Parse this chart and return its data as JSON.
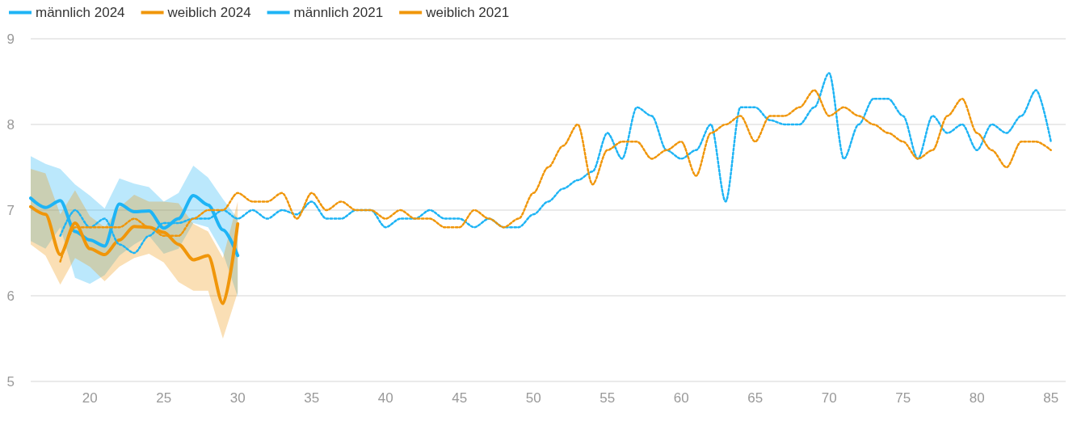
{
  "chart_data": {
    "type": "line",
    "xlim": [
      16,
      86
    ],
    "xticks": [
      20,
      25,
      30,
      35,
      40,
      45,
      50,
      55,
      60,
      65,
      70,
      75,
      80,
      85
    ],
    "ylim": [
      5,
      9
    ],
    "yticks": [
      5,
      6,
      7,
      8,
      9
    ],
    "grid": "y",
    "legend": "top left",
    "marker": "none",
    "series": [
      {
        "name": "männlich 2024",
        "color": "#1eb4f5",
        "line_style": "solid",
        "x": [
          16,
          17,
          18,
          19,
          20,
          21,
          22,
          23,
          24,
          25,
          26,
          27,
          28,
          29,
          30
        ],
        "values": [
          7.14,
          7.03,
          7.11,
          6.75,
          6.65,
          6.58,
          7.07,
          6.98,
          6.99,
          6.79,
          6.9,
          7.17,
          7.06,
          6.77,
          6.47
        ],
        "lower": [
          6.64,
          6.55,
          6.8,
          6.21,
          6.14,
          6.24,
          6.47,
          6.6,
          6.7,
          6.49,
          6.55,
          6.85,
          6.8,
          6.5,
          5.99
        ],
        "upper": [
          7.63,
          7.54,
          7.48,
          7.3,
          7.17,
          7.02,
          7.37,
          7.31,
          7.27,
          7.1,
          7.2,
          7.52,
          7.38,
          7.13,
          6.9
        ]
      },
      {
        "name": "weiblich 2024",
        "color": "#f0960a",
        "line_style": "solid",
        "x": [
          16,
          17,
          18,
          19,
          20,
          21,
          22,
          23,
          24,
          25,
          26,
          27,
          28,
          29,
          30
        ],
        "values": [
          7.04,
          6.95,
          6.48,
          6.85,
          6.55,
          6.48,
          6.65,
          6.81,
          6.8,
          6.74,
          6.6,
          6.42,
          6.47,
          5.91,
          6.84
        ],
        "lower": [
          6.6,
          6.47,
          6.13,
          6.44,
          6.34,
          6.17,
          6.34,
          6.44,
          6.49,
          6.39,
          6.16,
          6.06,
          6.06,
          5.5,
          6.04
        ],
        "upper": [
          7.48,
          7.43,
          6.95,
          7.23,
          6.93,
          6.8,
          7.03,
          7.18,
          7.1,
          7.1,
          7.08,
          6.84,
          6.75,
          6.44,
          7.1
        ]
      },
      {
        "name": "männlich 2021",
        "color": "#1eb4f5",
        "line_style": "dotted",
        "x": [
          18,
          19,
          20,
          21,
          22,
          23,
          24,
          25,
          26,
          27,
          28,
          29,
          30,
          31,
          32,
          33,
          34,
          35,
          36,
          37,
          38,
          39,
          40,
          41,
          42,
          43,
          44,
          45,
          46,
          47,
          48,
          49,
          50,
          51,
          52,
          53,
          54,
          55,
          56,
          57,
          58,
          59,
          60,
          61,
          62,
          63,
          64,
          65,
          66,
          67,
          68,
          69,
          70,
          71,
          72,
          73,
          74,
          75,
          76,
          77,
          78,
          79,
          80,
          81,
          82,
          83,
          84,
          85
        ],
        "values": [
          6.7,
          7.0,
          6.8,
          6.9,
          6.6,
          6.5,
          6.7,
          6.85,
          6.85,
          6.9,
          6.9,
          7.0,
          6.9,
          7.0,
          6.9,
          7.0,
          6.95,
          7.1,
          6.9,
          6.9,
          7.0,
          7.0,
          6.8,
          6.9,
          6.9,
          7.0,
          6.9,
          6.9,
          6.8,
          6.9,
          6.8,
          6.8,
          6.95,
          7.1,
          7.25,
          7.35,
          7.45,
          7.9,
          7.6,
          8.2,
          8.1,
          7.7,
          7.6,
          7.7,
          8.0,
          7.1,
          8.2,
          8.2,
          8.05,
          8.0,
          8.0,
          8.2,
          8.6,
          7.6,
          8.0,
          8.3,
          8.3,
          8.1,
          7.6,
          8.1,
          7.9,
          8.0,
          7.7,
          8.0,
          7.9,
          8.1,
          8.4,
          7.8
        ]
      },
      {
        "name": "weiblich 2021",
        "color": "#f0960a",
        "line_style": "dotted",
        "x": [
          18,
          19,
          20,
          21,
          22,
          23,
          24,
          25,
          26,
          27,
          28,
          29,
          30,
          31,
          32,
          33,
          34,
          35,
          36,
          37,
          38,
          39,
          40,
          41,
          42,
          43,
          44,
          45,
          46,
          47,
          48,
          49,
          50,
          51,
          52,
          53,
          54,
          55,
          56,
          57,
          58,
          59,
          60,
          61,
          62,
          63,
          64,
          65,
          66,
          67,
          68,
          69,
          70,
          71,
          72,
          73,
          74,
          75,
          76,
          77,
          78,
          79,
          80,
          81,
          82,
          83,
          84,
          85
        ],
        "values": [
          6.4,
          6.8,
          6.8,
          6.8,
          6.8,
          6.9,
          6.8,
          6.7,
          6.7,
          6.9,
          7.0,
          7.0,
          7.2,
          7.1,
          7.1,
          7.2,
          6.9,
          7.2,
          7.0,
          7.1,
          7.0,
          7.0,
          6.9,
          7.0,
          6.9,
          6.9,
          6.8,
          6.8,
          7.0,
          6.9,
          6.8,
          6.9,
          7.2,
          7.5,
          7.75,
          8.0,
          7.3,
          7.7,
          7.8,
          7.8,
          7.6,
          7.7,
          7.8,
          7.4,
          7.9,
          8.0,
          8.1,
          7.8,
          8.1,
          8.1,
          8.2,
          8.4,
          8.1,
          8.2,
          8.1,
          8.0,
          7.9,
          7.8,
          7.6,
          7.7,
          8.1,
          8.3,
          7.9,
          7.7,
          7.5,
          7.8,
          7.8,
          7.7
        ]
      }
    ]
  }
}
